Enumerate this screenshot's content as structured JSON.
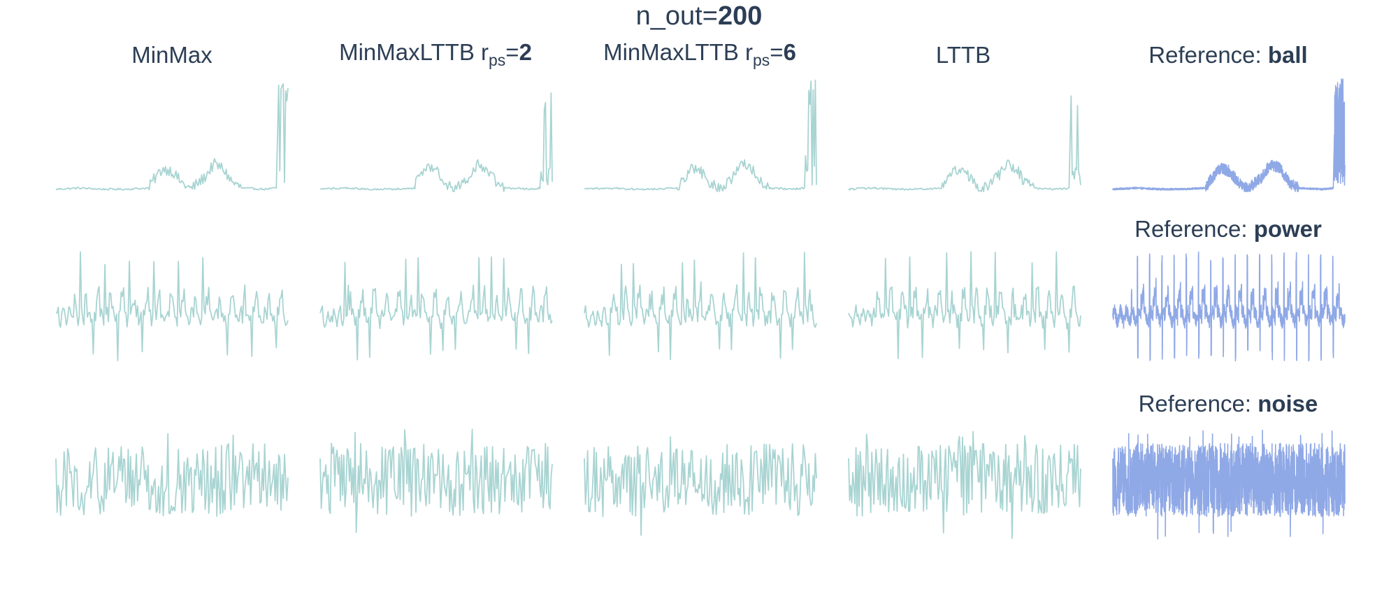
{
  "figure": {
    "title_prefix": "n_out=",
    "title_value": "200"
  },
  "columns": [
    {
      "id": "minmax",
      "label": "MinMax"
    },
    {
      "id": "minmaxlttb2",
      "label_main": "MinMaxLTTB r",
      "label_sub": "ps",
      "label_eq": "=",
      "label_value": "2"
    },
    {
      "id": "minmaxlttb6",
      "label_main": "MinMaxLTTB r",
      "label_sub": "ps",
      "label_eq": "=",
      "label_value": "6"
    },
    {
      "id": "lttb",
      "label": "LTTB"
    },
    {
      "id": "reference"
    }
  ],
  "reference_titles": [
    {
      "prefix": "Reference: ",
      "name": "ball"
    },
    {
      "prefix": "Reference: ",
      "name": "power"
    },
    {
      "prefix": "Reference: ",
      "name": "noise"
    }
  ],
  "colors": {
    "downsampled": "#a8d4d2",
    "reference": "#8fa8e6",
    "text": "#2c3e55"
  },
  "chart_data": {
    "type": "line",
    "grid": false,
    "axes_visible": false,
    "n_out": 200,
    "rows": [
      {
        "signal": "ball",
        "description_values": "baseline near 0, two humps around x=0.45 and x=0.7 reaching ~0.22, sharp spikes to ~1.0 at the end",
        "ylim": [
          0,
          1
        ],
        "profile": [
          [
            0.0,
            0.02
          ],
          [
            0.1,
            0.03
          ],
          [
            0.2,
            0.02
          ],
          [
            0.3,
            0.02
          ],
          [
            0.4,
            0.03
          ],
          [
            0.42,
            0.1
          ],
          [
            0.46,
            0.2
          ],
          [
            0.5,
            0.18
          ],
          [
            0.54,
            0.08
          ],
          [
            0.58,
            0.02
          ],
          [
            0.64,
            0.12
          ],
          [
            0.68,
            0.24
          ],
          [
            0.72,
            0.2
          ],
          [
            0.76,
            0.08
          ],
          [
            0.8,
            0.03
          ],
          [
            0.9,
            0.02
          ],
          [
            0.95,
            0.03
          ],
          [
            0.96,
            0.95
          ],
          [
            0.975,
            0.25
          ],
          [
            0.985,
            1.0
          ],
          [
            1.0,
            0.2
          ]
        ]
      },
      {
        "signal": "power",
        "description_values": "periodic spikes (~19 cycles) up to ~1.0 and dips down to ~0, baseline ~0.4",
        "ylim": [
          0,
          1
        ],
        "cycles": 19,
        "baseline": 0.42
      },
      {
        "signal": "noise",
        "description_values": "dense noise between ~0.2 and ~0.85 with occasional extremes to ~0.0 and ~0.98",
        "ylim": [
          0,
          1
        ],
        "low": 0.2,
        "high": 0.85
      }
    ]
  }
}
